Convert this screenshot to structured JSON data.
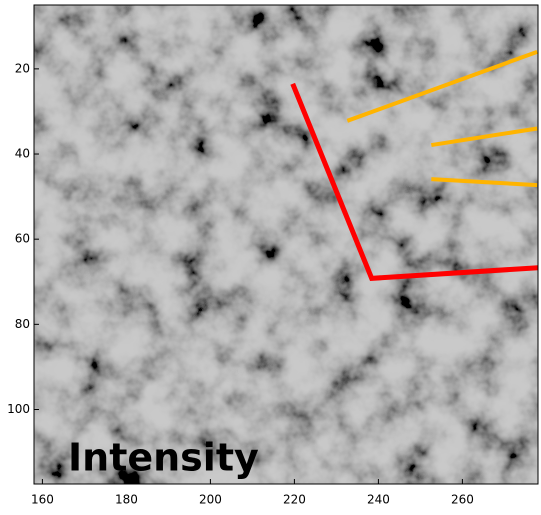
{
  "chart_data": {
    "type": "image",
    "annotation": "Intensity",
    "xlim": [
      158,
      278
    ],
    "ylim": [
      117.5,
      5
    ],
    "xticks": [
      160,
      180,
      200,
      220,
      240,
      260
    ],
    "yticks": [
      20,
      40,
      60,
      80,
      100
    ],
    "lines": [
      {
        "color": "#ff0000",
        "x": [
          219.6,
          238.4,
          278
        ],
        "y": [
          23.5,
          69.2,
          66.7
        ]
      },
      {
        "color": "#ffb400",
        "x": [
          232.6,
          277.8
        ],
        "y": [
          32.2,
          16.0
        ]
      },
      {
        "color": "#ffb400",
        "x": [
          252.6,
          277.8
        ],
        "y": [
          37.9,
          34.0
        ]
      },
      {
        "color": "#ffb400",
        "x": [
          252.6,
          277.8
        ],
        "y": [
          45.9,
          47.3
        ]
      }
    ]
  }
}
